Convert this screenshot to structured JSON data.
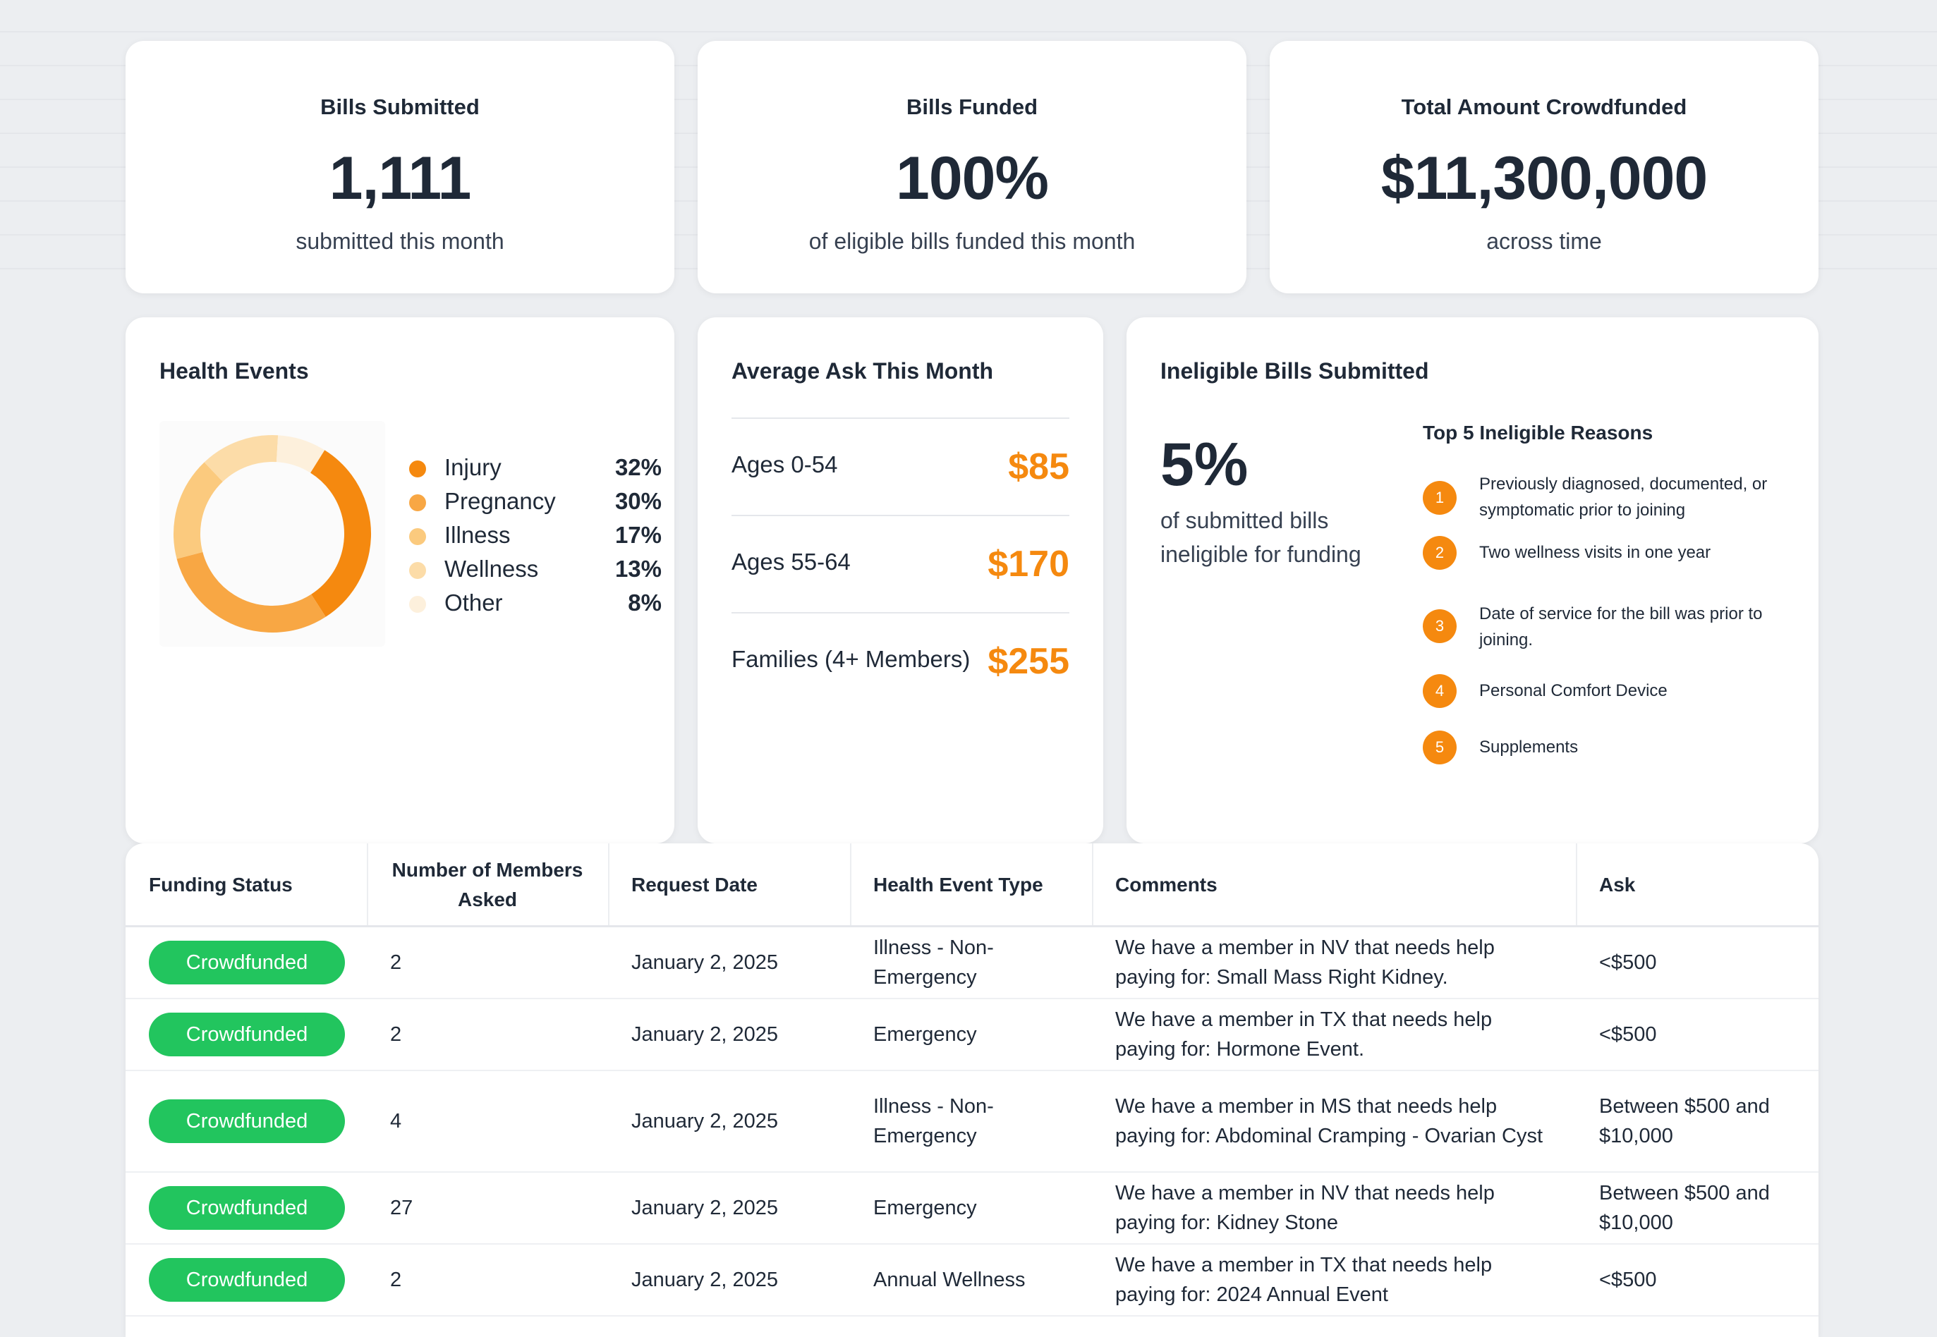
{
  "stats": [
    {
      "label": "Bills Submitted",
      "value": "1,111",
      "caption": "submitted this month"
    },
    {
      "label": "Bills Funded",
      "value": "100%",
      "caption": "of eligible bills funded this month"
    },
    {
      "label": "Total Amount Crowdfunded",
      "value": "$11,300,000",
      "caption": "across time"
    }
  ],
  "health_events": {
    "title": "Health Events",
    "chart_data": {
      "type": "pie",
      "categories": [
        "Injury",
        "Pregnancy",
        "Illness",
        "Wellness",
        "Other"
      ],
      "values": [
        32,
        30,
        17,
        13,
        8
      ],
      "labels": [
        "32%",
        "30%",
        "17%",
        "13%",
        "8%"
      ],
      "colors": [
        "#f5890f",
        "#f8a744",
        "#fbca7e",
        "#fcdca8",
        "#fdf0dc"
      ],
      "title": "",
      "legend": "right"
    }
  },
  "average_ask": {
    "title": "Average Ask This Month",
    "rows": [
      {
        "label": "Ages 0-54",
        "value": "$85"
      },
      {
        "label": "Ages 55-64",
        "value": "$170"
      },
      {
        "label": "Families (4+ Members)",
        "value": "$255"
      }
    ]
  },
  "ineligible": {
    "title": "Ineligible Bills Submitted",
    "percent": "5%",
    "caption": "of submitted bills ineligible for funding",
    "reasons_title": "Top 5 Ineligible Reasons",
    "reasons": [
      {
        "num": "1",
        "text": "Previously diagnosed, documented, or symptomatic prior to joining"
      },
      {
        "num": "2",
        "text": "Two wellness visits in one year"
      },
      {
        "num": "3",
        "text": "Date of service for the bill was prior to joining."
      },
      {
        "num": "4",
        "text": "Personal Comfort Device"
      },
      {
        "num": "5",
        "text": "Supplements"
      }
    ]
  },
  "table": {
    "headers": [
      "Funding Status",
      "Number of Members Asked",
      "Request Date",
      "Health Event Type",
      "Comments",
      "Ask"
    ],
    "rows": [
      {
        "status": "Crowdfunded",
        "members": "2",
        "date": "January 2, 2025",
        "type": "Illness - Non-Emergency",
        "comment": "We have a member in NV that needs help paying for: Small Mass Right Kidney.",
        "ask": "<$500"
      },
      {
        "status": "Crowdfunded",
        "members": "2",
        "date": "January 2, 2025",
        "type": "Emergency",
        "comment": "We have a member in TX that needs help paying for: Hormone Event.",
        "ask": "<$500"
      },
      {
        "status": "Crowdfunded",
        "members": "4",
        "date": "January 2, 2025",
        "type": "Illness - Non-Emergency",
        "comment": "We have a member in MS that needs help paying for: Abdominal Cramping - Ovarian Cyst",
        "ask": "Between $500 and $10,000"
      },
      {
        "status": "Crowdfunded",
        "members": "27",
        "date": "January 2, 2025",
        "type": "Emergency",
        "comment": "We have a member in NV that needs help paying for: Kidney Stone",
        "ask": "Between $500 and $10,000"
      },
      {
        "status": "Crowdfunded",
        "members": "2",
        "date": "January 2, 2025",
        "type": "Annual Wellness",
        "comment": "We have a member in TX that needs help paying for: 2024 Annual Event",
        "ask": "<$500"
      }
    ]
  }
}
